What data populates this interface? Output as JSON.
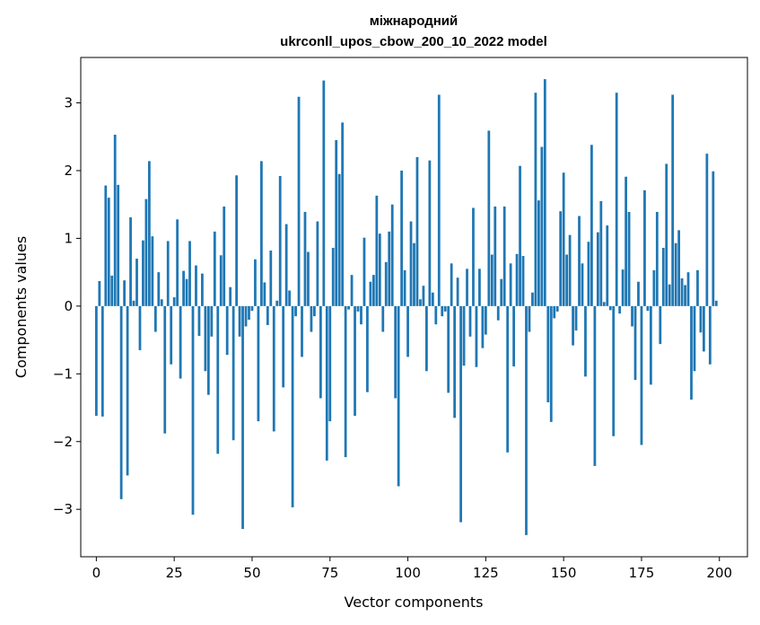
{
  "chart_data": {
    "type": "bar",
    "title": "міжнародний",
    "subtitle": "ukrconll_upos_cbow_200_10_2022 model",
    "xlabel": "Vector components",
    "ylabel": "Components values",
    "xlim": [
      -5,
      209
    ],
    "ylim": [
      -3.7,
      3.67
    ],
    "xticks": [
      0,
      25,
      50,
      75,
      100,
      125,
      150,
      175,
      200
    ],
    "yticks": [
      -3,
      -2,
      -1,
      0,
      1,
      2,
      3
    ],
    "grid": false,
    "bar_color": "#1f77b4",
    "x": [
      0,
      1,
      2,
      3,
      4,
      5,
      6,
      7,
      8,
      9,
      10,
      11,
      12,
      13,
      14,
      15,
      16,
      17,
      18,
      19,
      20,
      21,
      22,
      23,
      24,
      25,
      26,
      27,
      28,
      29,
      30,
      31,
      32,
      33,
      34,
      35,
      36,
      37,
      38,
      39,
      40,
      41,
      42,
      43,
      44,
      45,
      46,
      47,
      48,
      49,
      50,
      51,
      52,
      53,
      54,
      55,
      56,
      57,
      58,
      59,
      60,
      61,
      62,
      63,
      64,
      65,
      66,
      67,
      68,
      69,
      70,
      71,
      72,
      73,
      74,
      75,
      76,
      77,
      78,
      79,
      80,
      81,
      82,
      83,
      84,
      85,
      86,
      87,
      88,
      89,
      90,
      91,
      92,
      93,
      94,
      95,
      96,
      97,
      98,
      99,
      100,
      101,
      102,
      103,
      104,
      105,
      106,
      107,
      108,
      109,
      110,
      111,
      112,
      113,
      114,
      115,
      116,
      117,
      118,
      119,
      120,
      121,
      122,
      123,
      124,
      125,
      126,
      127,
      128,
      129,
      130,
      131,
      132,
      133,
      134,
      135,
      136,
      137,
      138,
      139,
      140,
      141,
      142,
      143,
      144,
      145,
      146,
      147,
      148,
      149,
      150,
      151,
      152,
      153,
      154,
      155,
      156,
      157,
      158,
      159,
      160,
      161,
      162,
      163,
      164,
      165,
      166,
      167,
      168,
      169,
      170,
      171,
      172,
      173,
      174,
      175,
      176,
      177,
      178,
      179,
      180,
      181,
      182,
      183,
      184,
      185,
      186,
      187,
      188,
      189,
      190,
      191,
      192,
      193,
      194,
      195,
      196,
      197,
      198,
      199
    ],
    "values": [
      -1.62,
      0.37,
      -1.63,
      1.78,
      1.6,
      0.45,
      2.53,
      1.79,
      -2.85,
      0.38,
      -2.5,
      1.31,
      0.08,
      0.7,
      -0.65,
      0.97,
      1.58,
      2.14,
      1.03,
      -0.38,
      0.5,
      0.1,
      -1.88,
      0.96,
      -0.86,
      0.13,
      1.28,
      -1.07,
      0.52,
      0.4,
      0.96,
      -3.08,
      0.6,
      -0.44,
      0.48,
      -0.96,
      -1.31,
      -0.45,
      1.1,
      -2.18,
      0.75,
      1.47,
      -0.72,
      0.28,
      -1.98,
      1.93,
      -0.45,
      -3.29,
      -0.3,
      -0.2,
      -0.07,
      0.69,
      -1.7,
      2.14,
      0.35,
      -0.28,
      0.82,
      -1.85,
      0.08,
      1.92,
      -1.2,
      1.21,
      0.23,
      -2.97,
      -0.15,
      3.09,
      -0.75,
      1.39,
      0.8,
      -0.38,
      -0.15,
      1.25,
      -1.36,
      3.33,
      -2.28,
      -1.7,
      0.86,
      2.45,
      1.95,
      2.71,
      -2.23,
      -0.05,
      0.46,
      -1.62,
      -0.08,
      -0.27,
      1.01,
      -1.27,
      0.36,
      0.46,
      1.63,
      1.07,
      -0.38,
      0.65,
      1.1,
      1.5,
      -1.36,
      -2.66,
      2.0,
      0.53,
      -0.75,
      1.25,
      0.93,
      2.2,
      0.1,
      0.3,
      -0.96,
      2.15,
      0.2,
      -0.27,
      3.12,
      -0.15,
      -0.08,
      -1.28,
      0.63,
      -1.65,
      0.42,
      -3.19,
      -0.88,
      0.55,
      -0.45,
      1.45,
      -0.9,
      0.55,
      -0.62,
      -0.42,
      2.59,
      0.76,
      1.47,
      -0.21,
      0.4,
      1.47,
      -2.16,
      0.63,
      -0.89,
      0.77,
      2.07,
      0.74,
      -3.38,
      -0.38,
      0.2,
      3.15,
      1.56,
      2.35,
      3.35,
      -1.42,
      -1.71,
      -0.18,
      -0.08,
      1.4,
      1.97,
      0.76,
      1.05,
      -0.58,
      -0.36,
      1.33,
      0.63,
      -1.04,
      0.95,
      2.38,
      -2.36,
      1.09,
      1.55,
      0.06,
      1.19,
      -0.06,
      -1.92,
      3.15,
      -0.11,
      0.54,
      1.91,
      1.39,
      -0.3,
      -1.09,
      0.36,
      -2.05,
      1.71,
      -0.07,
      -1.16,
      0.53,
      1.39,
      -0.56,
      0.86,
      2.1,
      0.32,
      3.12,
      0.93,
      1.12,
      0.41,
      0.31,
      0.5,
      -1.38,
      -0.96,
      0.53,
      -0.39,
      -0.67,
      2.25,
      -0.86,
      1.99,
      0.08
    ]
  }
}
